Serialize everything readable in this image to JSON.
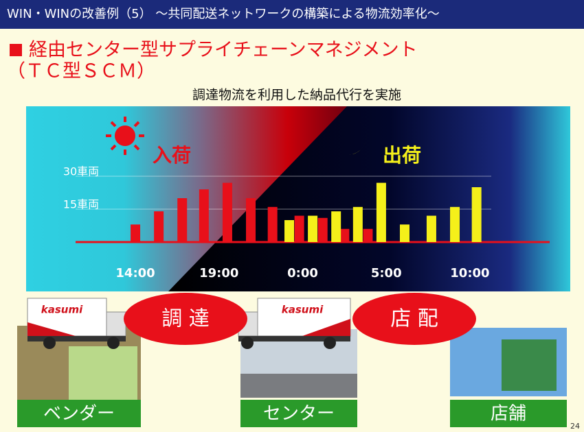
{
  "header": "WIN・WINの改善例（5） ～共同配送ネットワークの構築による物流効率化～",
  "title_line1": "経由センター型サプライチェーンマネジメント",
  "title_line2": "（ＴＣ型ＳＣＭ）",
  "subtitle": "調達物流を利用した納品代行を実施",
  "chart_data": {
    "type": "bar",
    "annotations": [
      "入荷",
      "出荷"
    ],
    "xlim": [
      8,
      40
    ],
    "xticks": [
      {
        "value": 14,
        "label": "14:00"
      },
      {
        "value": 19,
        "label": "19:00"
      },
      {
        "value": 24,
        "label": "0:00"
      },
      {
        "value": 29,
        "label": "5:00"
      },
      {
        "value": 34,
        "label": "10:00"
      }
    ],
    "ylim": [
      0,
      30
    ],
    "yticks": [
      {
        "value": 15,
        "label": "15車両"
      },
      {
        "value": 30,
        "label": "30車両"
      }
    ],
    "grid": true,
    "series": [
      {
        "color": "#e8101a",
        "x": [
          14.0,
          15.4,
          16.8,
          18.1,
          19.5,
          20.9,
          22.2,
          23.8,
          25.2,
          26.5,
          27.9
        ],
        "values": [
          8,
          14,
          20,
          24,
          27,
          20,
          16,
          12,
          11,
          6,
          6
        ]
      },
      {
        "color": "#f5f01a",
        "x": [
          23.2,
          24.6,
          26.0,
          27.3,
          28.7,
          30.1,
          31.7,
          33.1,
          34.4
        ],
        "values": [
          10,
          12,
          14,
          16,
          27,
          8,
          12,
          16,
          25
        ]
      }
    ]
  },
  "truck_brand": [
    "kasumi",
    "kasumi"
  ],
  "process_labels": [
    "調 達",
    "店 配"
  ],
  "place_labels": [
    "ベンダー",
    "センター",
    "店舗"
  ],
  "page_number": "24"
}
